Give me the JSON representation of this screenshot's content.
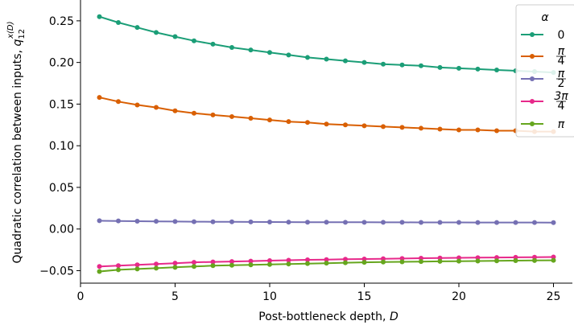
{
  "chart_data": {
    "type": "line",
    "title": "",
    "xlabel": "Post-bottleneck depth,",
    "xlabel_var": "D",
    "ylabel": "Quadratic correlation between inputs,",
    "ylabel_var": "q",
    "ylabel_sub": "12",
    "ylabel_sup": "x(D)",
    "xlim": [
      0,
      26
    ],
    "ylim": [
      -0.065,
      0.275
    ],
    "x_ticks": [
      0,
      5,
      10,
      15,
      20,
      25
    ],
    "x_tick_labels": [
      "0",
      "5",
      "10",
      "15",
      "20",
      "25"
    ],
    "y_ticks": [
      -0.05,
      0.0,
      0.05,
      0.1,
      0.15,
      0.2,
      0.25
    ],
    "y_tick_labels": [
      "−0.05",
      "0.00",
      "0.05",
      "0.10",
      "0.15",
      "0.20",
      "0.25"
    ],
    "grid": false,
    "legend": {
      "title": "α",
      "placement": "top-right"
    },
    "x": [
      1,
      2,
      3,
      4,
      5,
      6,
      7,
      8,
      9,
      10,
      11,
      12,
      13,
      14,
      15,
      16,
      17,
      18,
      19,
      20,
      21,
      22,
      23,
      24,
      25
    ],
    "series": [
      {
        "name": "0",
        "label_kind": "plain",
        "color": "#1b9e77",
        "values": [
          0.255,
          0.248,
          0.242,
          0.236,
          0.231,
          0.226,
          0.222,
          0.218,
          0.215,
          0.212,
          0.209,
          0.206,
          0.204,
          0.202,
          0.2,
          0.198,
          0.197,
          0.196,
          0.194,
          0.193,
          0.192,
          0.191,
          0.19,
          0.189,
          0.188
        ]
      },
      {
        "name": "π/4",
        "label_kind": "frac",
        "num": "π",
        "den": "4",
        "color": "#d95f02",
        "values": [
          0.158,
          0.153,
          0.149,
          0.146,
          0.142,
          0.139,
          0.137,
          0.135,
          0.133,
          0.131,
          0.129,
          0.128,
          0.126,
          0.125,
          0.124,
          0.123,
          0.122,
          0.121,
          0.12,
          0.119,
          0.119,
          0.118,
          0.118,
          0.117,
          0.117
        ]
      },
      {
        "name": "π/2",
        "label_kind": "frac",
        "num": "π",
        "den": "2",
        "color": "#7570b3",
        "values": [
          0.01,
          0.0097,
          0.0094,
          0.0092,
          0.009,
          0.0088,
          0.0087,
          0.0086,
          0.0085,
          0.0084,
          0.0083,
          0.0082,
          0.0082,
          0.0081,
          0.0081,
          0.008,
          0.008,
          0.0079,
          0.0079,
          0.0079,
          0.0078,
          0.0078,
          0.0078,
          0.0078,
          0.0077
        ]
      },
      {
        "name": "3π/4",
        "label_kind": "frac",
        "num": "3π",
        "den": "4",
        "color": "#e7298a",
        "values": [
          -0.045,
          -0.044,
          -0.043,
          -0.042,
          -0.041,
          -0.04,
          -0.0395,
          -0.039,
          -0.0385,
          -0.038,
          -0.0375,
          -0.037,
          -0.0367,
          -0.0363,
          -0.036,
          -0.0357,
          -0.0354,
          -0.0351,
          -0.0348,
          -0.0346,
          -0.0344,
          -0.0342,
          -0.034,
          -0.0338,
          -0.0336
        ]
      },
      {
        "name": "π",
        "label_kind": "italic",
        "color": "#66a61e",
        "values": [
          -0.051,
          -0.049,
          -0.048,
          -0.047,
          -0.046,
          -0.045,
          -0.044,
          -0.0435,
          -0.043,
          -0.0425,
          -0.042,
          -0.0415,
          -0.041,
          -0.0405,
          -0.04,
          -0.0397,
          -0.0394,
          -0.0391,
          -0.0388,
          -0.0386,
          -0.0384,
          -0.0382,
          -0.038,
          -0.0378,
          -0.0376
        ]
      }
    ]
  }
}
